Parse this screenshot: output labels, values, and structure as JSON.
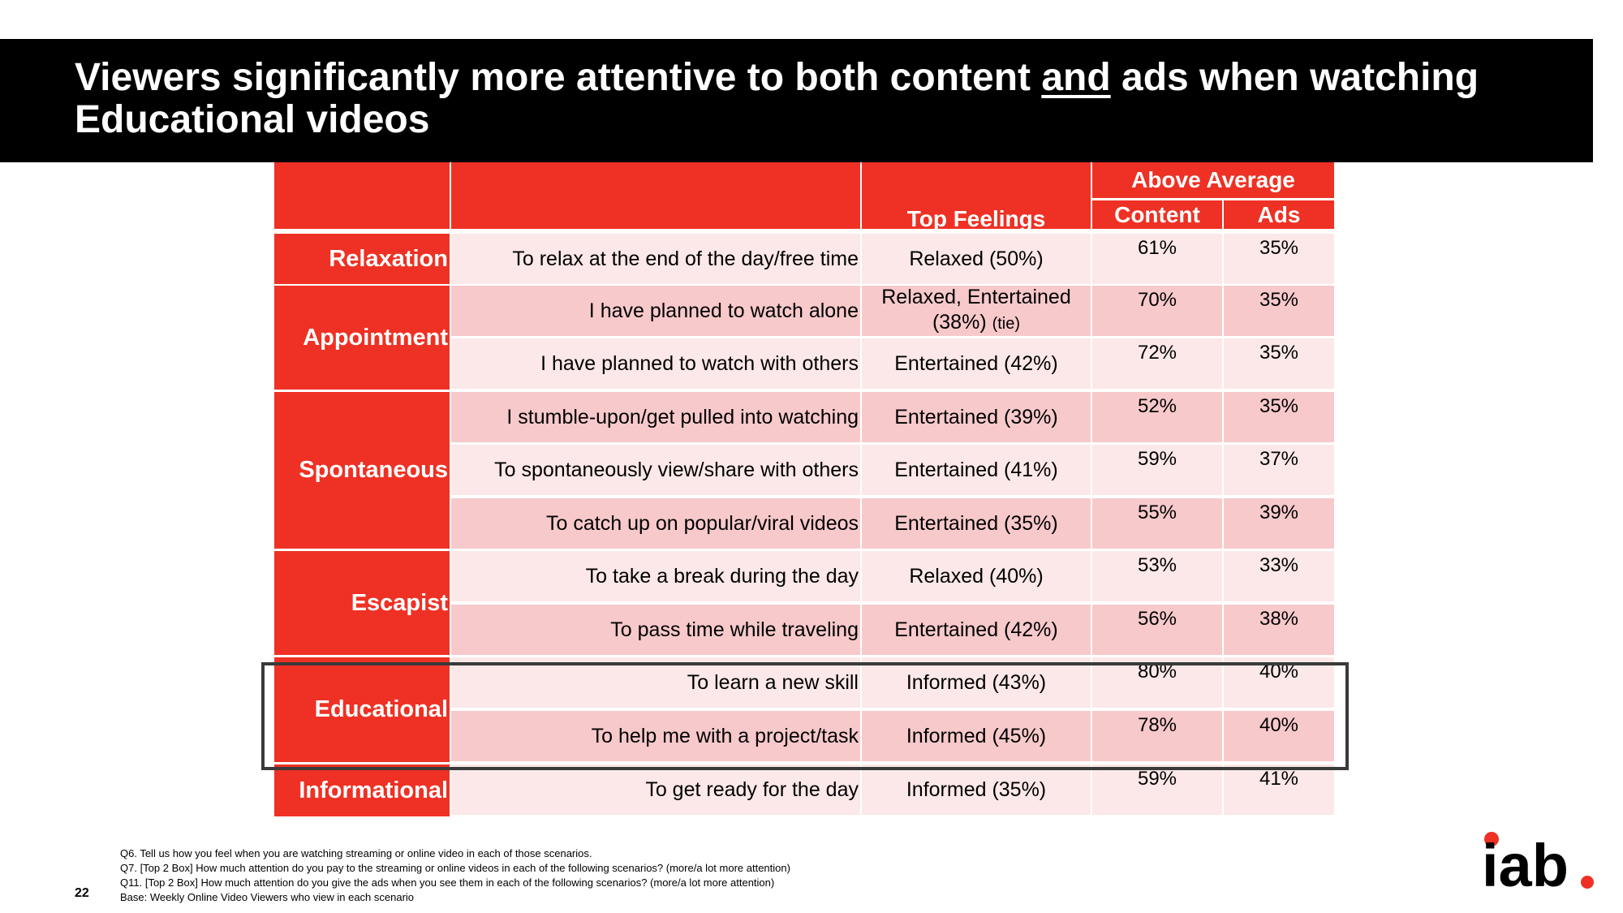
{
  "title": {
    "part1": "Viewers significantly more attentive to both content ",
    "emph": "and",
    "part2": " ads when watching Educational videos"
  },
  "headers": {
    "top_feelings": "Top Feelings",
    "above_average": "Above Average",
    "content": "Content",
    "ads": "Ads"
  },
  "categories": [
    "Relaxation",
    "Appointment",
    "Spontaneous",
    "Escapist",
    "Educational",
    "Informational"
  ],
  "rows": [
    {
      "scenario": "To relax at the end of the day/free time",
      "feeling": "Relaxed (50%)",
      "feeling_note": "",
      "content": "61%",
      "ads": "35%"
    },
    {
      "scenario": "I have planned to watch alone",
      "feeling": "Relaxed, Entertained (38%)",
      "feeling_note": "(tie)",
      "content": "70%",
      "ads": "35%"
    },
    {
      "scenario": "I have planned to watch with others",
      "feeling": "Entertained (42%)",
      "feeling_note": "",
      "content": "72%",
      "ads": "35%"
    },
    {
      "scenario": "I stumble-upon/get pulled into watching",
      "feeling": "Entertained (39%)",
      "feeling_note": "",
      "content": "52%",
      "ads": "35%"
    },
    {
      "scenario": "To spontaneously view/share with others",
      "feeling": "Entertained (41%)",
      "feeling_note": "",
      "content": "59%",
      "ads": "37%"
    },
    {
      "scenario": "To catch up on popular/viral videos",
      "feeling": "Entertained (35%)",
      "feeling_note": "",
      "content": "55%",
      "ads": "39%"
    },
    {
      "scenario": "To take a break during the day",
      "feeling": "Relaxed (40%)",
      "feeling_note": "",
      "content": "53%",
      "ads": "33%"
    },
    {
      "scenario": "To pass time while traveling",
      "feeling": "Entertained (42%)",
      "feeling_note": "",
      "content": "56%",
      "ads": "38%"
    },
    {
      "scenario": "To learn a new skill",
      "feeling": "Informed (43%)",
      "feeling_note": "",
      "content": "80%",
      "ads": "40%"
    },
    {
      "scenario": "To help me with a project/task",
      "feeling": "Informed (45%)",
      "feeling_note": "",
      "content": "78%",
      "ads": "40%"
    },
    {
      "scenario": "To get ready for the day",
      "feeling": "Informed (35%)",
      "feeling_note": "",
      "content": "59%",
      "ads": "41%"
    }
  ],
  "footnotes": [
    "Q6. Tell us how you feel when you are watching streaming or online video in each of those scenarios.",
    "Q7. [Top 2 Box] How much attention do you pay to the streaming or online videos in each of the following scenarios? (more/a lot more attention)",
    "Q11. [Top 2 Box] How much attention do you give the ads when you see them in each of the following scenarios? (more/a lot more attention)",
    "Base: Weekly Online Video Viewers who view in each scenario"
  ],
  "page_number": "22",
  "logo": {
    "text": "iab",
    "dot_color": "#ee3124"
  },
  "colors": {
    "accent_red": "#ee3124",
    "row_light": "#fce8e8",
    "row_dark": "#f7c9cb"
  }
}
